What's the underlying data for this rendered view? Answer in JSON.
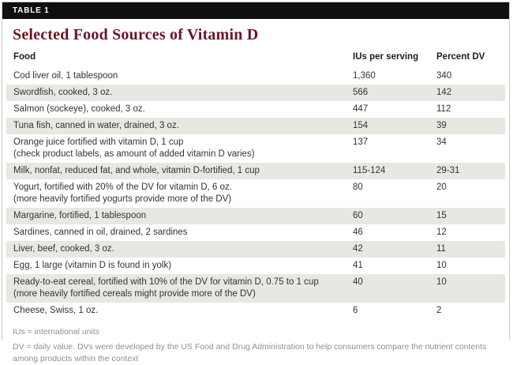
{
  "colors": {
    "bar_background": "#0f0f0f",
    "bar_text": "#ffffff",
    "title_text": "#6e1426",
    "shaded_row": "#e9e7e2",
    "body_text": "#333333",
    "footnote_text": "#8f8f8f",
    "border": "#c9c9c9"
  },
  "bar": {
    "label": "TABLE 1"
  },
  "table": {
    "title": "Selected Food Sources of Vitamin D",
    "columns": {
      "food": "Food",
      "iu": "IUs per serving",
      "dv": "Percent DV"
    },
    "rows": [
      {
        "food": "Cod liver oil, 1 tablespoon",
        "note": "",
        "iu": "1,360",
        "dv": "340",
        "shaded": false
      },
      {
        "food": "Swordfish, cooked, 3 oz.",
        "note": "",
        "iu": "566",
        "dv": "142",
        "shaded": true
      },
      {
        "food": "Salmon (sockeye), cooked, 3 oz.",
        "note": "",
        "iu": "447",
        "dv": "112",
        "shaded": false
      },
      {
        "food": "Tuna fish, canned in water, drained, 3 oz.",
        "note": "",
        "iu": "154",
        "dv": "39",
        "shaded": true
      },
      {
        "food": "Orange juice fortified with vitamin D, 1 cup",
        "note": "(check product labels, as amount of added vitamin D varies)",
        "iu": "137",
        "dv": "34",
        "shaded": false
      },
      {
        "food": "Milk, nonfat, reduced fat, and whole, vitamin D-fortified, 1 cup",
        "note": "",
        "iu": "115-124",
        "dv": "29-31",
        "shaded": true
      },
      {
        "food": "Yogurt, fortified with 20% of the DV for vitamin D, 6 oz.",
        "note": "(more heavily fortified yogurts provide more of the DV)",
        "iu": "80",
        "dv": "20",
        "shaded": false
      },
      {
        "food": "Margarine, fortified, 1 tablespoon",
        "note": "",
        "iu": "60",
        "dv": "15",
        "shaded": true
      },
      {
        "food": "Sardines, canned in oil, drained, 2 sardines",
        "note": "",
        "iu": "46",
        "dv": "12",
        "shaded": false
      },
      {
        "food": "Liver, beef, cooked, 3 oz.",
        "note": "",
        "iu": "42",
        "dv": "11",
        "shaded": true
      },
      {
        "food": "Egg, 1 large (vitamin D is found in yolk)",
        "note": "",
        "iu": "41",
        "dv": "10",
        "shaded": false
      },
      {
        "food": "Ready-to-eat cereal, fortified with 10% of the DV for vitamin D, 0.75 to 1 cup",
        "note": "(more heavily fortified cereals might provide more of the DV)",
        "iu": "40",
        "dv": "10",
        "shaded": true
      },
      {
        "food": "Cheese, Swiss, 1 oz.",
        "note": "",
        "iu": "6",
        "dv": "2",
        "shaded": false
      }
    ]
  },
  "footnotes": [
    "IUs = international units",
    "DV = daily value. DVs were developed by the US Food and Drug Administration to help consumers compare the nutrient contents among products within the context"
  ]
}
